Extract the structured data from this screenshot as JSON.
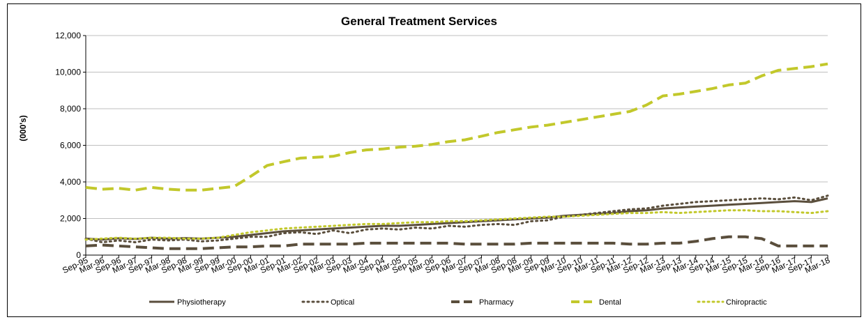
{
  "chart_data": {
    "type": "line",
    "title": "General Treatment Services",
    "xlabel": "",
    "ylabel": "(000's)",
    "ylim": [
      0,
      12000
    ],
    "yticks": [
      "0",
      "2,000",
      "4,000",
      "6,000",
      "8,000",
      "10,000",
      "12,000"
    ],
    "x": [
      "Sep-95",
      "Mar-96",
      "Sep-96",
      "Mar-97",
      "Sep-97",
      "Mar-98",
      "Sep-98",
      "Mar-99",
      "Sep-99",
      "Mar-00",
      "Sep-00",
      "Mar-01",
      "Sep-01",
      "Mar-02",
      "Sep-02",
      "Mar-03",
      "Sep-03",
      "Mar-04",
      "Sep-04",
      "Mar-05",
      "Sep-05",
      "Mar-06",
      "Sep-06",
      "Mar-07",
      "Sep-07",
      "Mar-08",
      "Sep-08",
      "Mar-09",
      "Sep-09",
      "Mar-10",
      "Sep-10",
      "Mar-11",
      "Sep-11",
      "Mar-12",
      "Sep-12",
      "Mar-13",
      "Sep-13",
      "Mar-14",
      "Sep-14",
      "Mar-15",
      "Sep-15",
      "Mar-16",
      "Sep-16",
      "Mar-17",
      "Sep-17",
      "Mar-18"
    ],
    "grid": true,
    "legend_position": "bottom",
    "series": [
      {
        "name": "Physiotherapy",
        "color": "#5a4e3c",
        "style": "solid",
        "values": [
          900,
          850,
          920,
          880,
          950,
          900,
          930,
          900,
          950,
          1000,
          1100,
          1200,
          1300,
          1350,
          1400,
          1450,
          1500,
          1550,
          1600,
          1600,
          1650,
          1700,
          1750,
          1800,
          1850,
          1900,
          1950,
          2000,
          2050,
          2150,
          2200,
          2250,
          2300,
          2400,
          2450,
          2550,
          2600,
          2650,
          2700,
          2750,
          2800,
          2850,
          2900,
          2950,
          2900,
          3100
        ]
      },
      {
        "name": "Optical",
        "color": "#5a4e3c",
        "style": "dotted",
        "values": [
          900,
          700,
          800,
          700,
          850,
          800,
          850,
          750,
          800,
          900,
          1000,
          1000,
          1200,
          1250,
          1150,
          1350,
          1200,
          1400,
          1450,
          1400,
          1500,
          1450,
          1600,
          1550,
          1650,
          1700,
          1650,
          1850,
          1900,
          2100,
          2200,
          2300,
          2400,
          2500,
          2550,
          2700,
          2800,
          2900,
          2950,
          3000,
          3050,
          3100,
          3050,
          3150,
          3000,
          3250
        ]
      },
      {
        "name": "Pharmacy",
        "color": "#5a4e3c",
        "style": "dashed",
        "values": [
          500,
          550,
          500,
          450,
          400,
          350,
          350,
          350,
          400,
          450,
          450,
          500,
          500,
          600,
          600,
          600,
          600,
          650,
          650,
          650,
          650,
          650,
          650,
          600,
          600,
          600,
          600,
          650,
          650,
          650,
          650,
          650,
          650,
          600,
          600,
          650,
          650,
          750,
          900,
          1000,
          1000,
          900,
          500,
          500,
          500,
          500
        ]
      },
      {
        "name": "Dental",
        "color": "#c2c82b",
        "style": "dashed",
        "values": [
          3700,
          3600,
          3650,
          3550,
          3700,
          3600,
          3550,
          3550,
          3650,
          3750,
          4300,
          4900,
          5100,
          5300,
          5350,
          5400,
          5600,
          5750,
          5800,
          5900,
          5950,
          6050,
          6200,
          6300,
          6500,
          6700,
          6850,
          7000,
          7100,
          7250,
          7400,
          7550,
          7700,
          7850,
          8200,
          8700,
          8800,
          8950,
          9100,
          9300,
          9400,
          9800,
          10100,
          10200,
          10300,
          10450
        ]
      },
      {
        "name": "Chiropractic",
        "color": "#c2c82b",
        "style": "dotted",
        "values": [
          850,
          900,
          950,
          900,
          950,
          950,
          900,
          900,
          950,
          1100,
          1250,
          1350,
          1450,
          1500,
          1550,
          1600,
          1650,
          1700,
          1700,
          1750,
          1800,
          1800,
          1850,
          1850,
          1900,
          1950,
          2000,
          2050,
          2100,
          2100,
          2150,
          2200,
          2250,
          2300,
          2300,
          2350,
          2300,
          2350,
          2400,
          2450,
          2450,
          2400,
          2400,
          2350,
          2300,
          2400
        ]
      }
    ]
  }
}
